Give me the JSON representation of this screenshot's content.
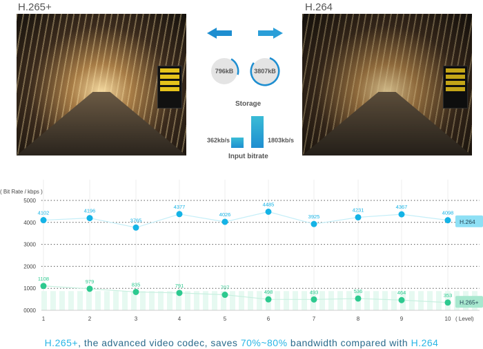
{
  "left_panel": {
    "title": "H.265+"
  },
  "right_panel": {
    "title": "H.264"
  },
  "center": {
    "storage": {
      "left_value": "796kB",
      "right_value": "3807kB",
      "label": "Storage",
      "left_fraction": 0.21,
      "right_fraction": 0.8
    },
    "bitrate": {
      "left_value": "362kb/s",
      "right_value": "1803kb/s",
      "label": "Input bitrate"
    },
    "icons": [
      "arrow-left-icon",
      "arrow-right-icon"
    ],
    "accent": "#1e8ed0"
  },
  "chart_data": {
    "type": "line",
    "ylabel": "( Bit Rate / kbps )",
    "xlabel": "( Level)",
    "ylim": [
      0,
      5000
    ],
    "yticks": [
      "0000",
      "1000",
      "2000",
      "3000",
      "4000",
      "5000"
    ],
    "categories": [
      "1",
      "2",
      "3",
      "4",
      "5",
      "6",
      "7",
      "8",
      "9",
      "10"
    ],
    "series": [
      {
        "name": "H.264",
        "color": "#14b3e6",
        "values": [
          4102,
          4196,
          3765,
          4377,
          4026,
          4485,
          3925,
          4231,
          4367,
          4098
        ]
      },
      {
        "name": "H.265+",
        "color": "#2dc98f",
        "values": [
          1108,
          979,
          835,
          791,
          707,
          498,
          493,
          536,
          464,
          353
        ]
      }
    ]
  },
  "caption": {
    "p1": "H.265+",
    "p2": ", the advanced video codec, saves ",
    "p3": "70%~80%",
    "p4": " bandwidth compared with ",
    "p5": "H.264"
  }
}
